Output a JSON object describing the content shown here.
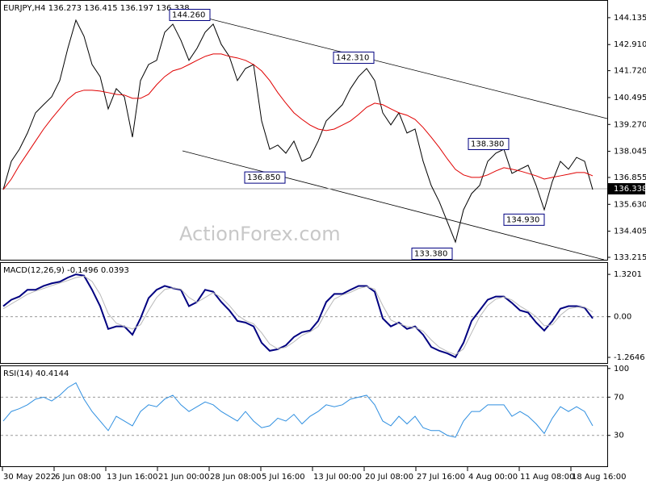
{
  "chart_data": [
    {
      "type": "line",
      "title": "EURJPY,H4  136.273 136.415 136.197 136.338",
      "watermark": "ActionForex.com",
      "x_labels": [
        "30 May 2022",
        "6 Jun 08:00",
        "13 Jun 16:00",
        "21 Jun 00:00",
        "28 Jun 08:00",
        "5 Jul 16:00",
        "13 Jul 00:00",
        "20 Jul 08:00",
        "27 Jul 16:00",
        "4 Aug 00:00",
        "11 Aug 08:00",
        "18 Aug 16:00"
      ],
      "ylim": [
        133.105,
        144.94
      ],
      "yticks": [
        144.135,
        {
          "value": 142.91,
          "label": "142.910"
        },
        {
          "value": 141.72,
          "label": "141.720"
        },
        140.495,
        {
          "value": 139.27,
          "label": "139.270"
        },
        138.045,
        136.855,
        {
          "value": 135.63,
          "label": "135.630"
        },
        134.405,
        133.215
      ],
      "last_price": 136.338,
      "series": [
        {
          "color": "#000000",
          "values": [
            136.3,
            137.59,
            138.14,
            138.88,
            139.8,
            140.17,
            140.53,
            141.27,
            142.74,
            144.02,
            143.29,
            142.0,
            141.45,
            139.98,
            140.9,
            140.53,
            138.69,
            141.27,
            142.0,
            142.19,
            143.47,
            143.84,
            143.11,
            142.19,
            142.74,
            143.47,
            143.84,
            142.92,
            142.37,
            141.27,
            141.82,
            142.0,
            139.43,
            138.14,
            138.33,
            137.96,
            138.51,
            137.59,
            137.77,
            138.51,
            139.43,
            139.8,
            140.17,
            140.9,
            141.45,
            141.82,
            141.27,
            139.8,
            139.25,
            139.8,
            138.88,
            139.06,
            137.59,
            136.49,
            135.75,
            134.83,
            133.91,
            135.38,
            136.12,
            136.49,
            137.59,
            137.96,
            138.14,
            137.04,
            137.23,
            137.41,
            136.49,
            135.38,
            136.67,
            137.59,
            137.23,
            137.77,
            137.59,
            136.3
          ]
        },
        {
          "color": "#e00000",
          "values": [
            136.3,
            136.78,
            137.41,
            137.96,
            138.51,
            139.06,
            139.54,
            139.98,
            140.42,
            140.72,
            140.83,
            140.83,
            140.79,
            140.72,
            140.64,
            140.61,
            140.46,
            140.46,
            140.64,
            141.08,
            141.45,
            141.71,
            141.82,
            142.0,
            142.19,
            142.37,
            142.48,
            142.48,
            142.37,
            142.3,
            142.19,
            142.0,
            141.71,
            141.27,
            140.72,
            140.24,
            139.8,
            139.5,
            139.24,
            139.06,
            138.99,
            139.06,
            139.24,
            139.43,
            139.72,
            140.05,
            140.24,
            140.17,
            139.98,
            139.8,
            139.69,
            139.5,
            139.13,
            138.69,
            138.22,
            137.7,
            137.22,
            136.97,
            136.86,
            136.86,
            136.97,
            137.15,
            137.3,
            137.23,
            137.15,
            137.04,
            136.93,
            136.78,
            136.86,
            136.93,
            137.0,
            137.08,
            137.08,
            136.93
          ]
        }
      ],
      "annotations": [
        {
          "label": "144.260",
          "value": 144.26
        },
        {
          "label": "142.310",
          "value": 142.31
        },
        {
          "label": "136.850",
          "value": 136.85
        },
        {
          "label": "138.380",
          "value": 138.38
        },
        {
          "label": "134.930",
          "value": 134.93
        },
        {
          "label": "133.380",
          "value": 133.38
        }
      ]
    },
    {
      "type": "line",
      "title": "MACD(12,26,9) -0.1496 0.0393",
      "ylim": [
        -1.44,
        1.7
      ],
      "yticks": [
        1.3201,
        {
          "value": 0,
          "label": "0.00"
        },
        -1.2646
      ],
      "levels": [
        0
      ],
      "series": [
        {
          "color": "#000080",
          "values": [
            0.33,
            0.53,
            0.63,
            0.84,
            0.84,
            0.96,
            1.04,
            1.09,
            1.22,
            1.32,
            1.28,
            0.84,
            0.33,
            -0.38,
            -0.3,
            -0.3,
            -0.56,
            -0.05,
            0.58,
            0.84,
            0.96,
            0.89,
            0.84,
            0.33,
            0.46,
            0.84,
            0.78,
            0.46,
            0.2,
            -0.13,
            -0.18,
            -0.3,
            -0.81,
            -1.06,
            -1.01,
            -0.89,
            -0.63,
            -0.48,
            -0.43,
            -0.13,
            0.46,
            0.71,
            0.71,
            0.84,
            0.96,
            0.96,
            0.78,
            -0.05,
            -0.3,
            -0.18,
            -0.38,
            -0.3,
            -0.56,
            -0.94,
            -1.06,
            -1.14,
            -1.26,
            -0.81,
            -0.13,
            0.2,
            0.53,
            0.63,
            0.63,
            0.43,
            0.2,
            0.13,
            -0.18,
            -0.43,
            -0.13,
            0.25,
            0.33,
            0.33,
            0.28,
            -0.05
          ]
        },
        {
          "color": "#b8b8b8",
          "values": [
            0.25,
            0.4,
            0.55,
            0.7,
            0.8,
            0.88,
            0.97,
            1.05,
            1.13,
            1.22,
            1.27,
            1.1,
            0.7,
            0.1,
            -0.2,
            -0.3,
            -0.38,
            -0.25,
            0.2,
            0.6,
            0.85,
            0.9,
            0.86,
            0.6,
            0.45,
            0.6,
            0.75,
            0.6,
            0.35,
            0.05,
            -0.12,
            -0.22,
            -0.5,
            -0.85,
            -1.0,
            -0.95,
            -0.78,
            -0.58,
            -0.47,
            -0.3,
            0.15,
            0.55,
            0.68,
            0.76,
            0.88,
            0.94,
            0.86,
            0.35,
            -0.1,
            -0.22,
            -0.3,
            -0.33,
            -0.45,
            -0.72,
            -0.95,
            -1.08,
            -1.18,
            -1.0,
            -0.5,
            0.0,
            0.35,
            0.55,
            0.62,
            0.52,
            0.33,
            0.18,
            0.0,
            -0.28,
            -0.25,
            0.05,
            0.25,
            0.3,
            0.3,
            0.15
          ]
        }
      ]
    },
    {
      "type": "line",
      "title": "RSI(14) 40.4144",
      "ylim": [
        -2.3,
        103.2
      ],
      "yticks": [
        100,
        70,
        30
      ],
      "levels": [
        70,
        30
      ],
      "series": [
        {
          "color": "#2f8fe0",
          "values": [
            45,
            55,
            58,
            62,
            68,
            70,
            66,
            72,
            80,
            85,
            68,
            55,
            45,
            35,
            50,
            45,
            40,
            55,
            62,
            60,
            68,
            72,
            62,
            55,
            60,
            65,
            62,
            55,
            50,
            45,
            55,
            45,
            38,
            40,
            48,
            45,
            52,
            42,
            50,
            55,
            62,
            60,
            62,
            68,
            70,
            72,
            62,
            45,
            40,
            50,
            42,
            50,
            38,
            35,
            35,
            30,
            28,
            45,
            55,
            55,
            62,
            62,
            62,
            50,
            55,
            50,
            42,
            32,
            48,
            60,
            55,
            60,
            55,
            40
          ]
        }
      ]
    }
  ]
}
